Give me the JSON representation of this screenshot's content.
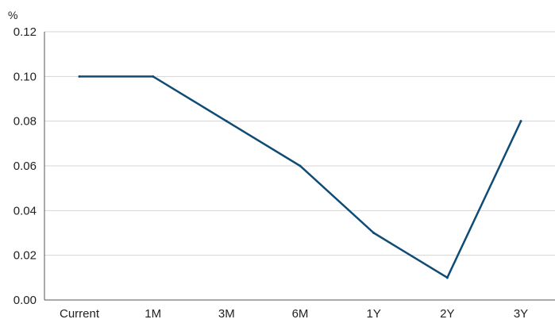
{
  "chart_data": {
    "type": "line",
    "title": "",
    "xlabel": "",
    "ylabel": "%",
    "categories": [
      "Current",
      "1M",
      "3M",
      "6M",
      "1Y",
      "2Y",
      "3Y"
    ],
    "series": [
      {
        "values": [
          0.1,
          0.1,
          0.08,
          0.06,
          0.03,
          0.01,
          0.08
        ]
      }
    ],
    "ylim": [
      0,
      0.12
    ],
    "yticks": [
      "0.00",
      "0.02",
      "0.04",
      "0.06",
      "0.08",
      "0.10",
      "0.12"
    ],
    "ytick_values": [
      0,
      0.02,
      0.04,
      0.06,
      0.08,
      0.1,
      0.12
    ],
    "grid": "horizontal",
    "legend": "none",
    "colors": {
      "line": "#0f4c75",
      "grid": "#d4d4d4",
      "axis": "#555555"
    }
  }
}
